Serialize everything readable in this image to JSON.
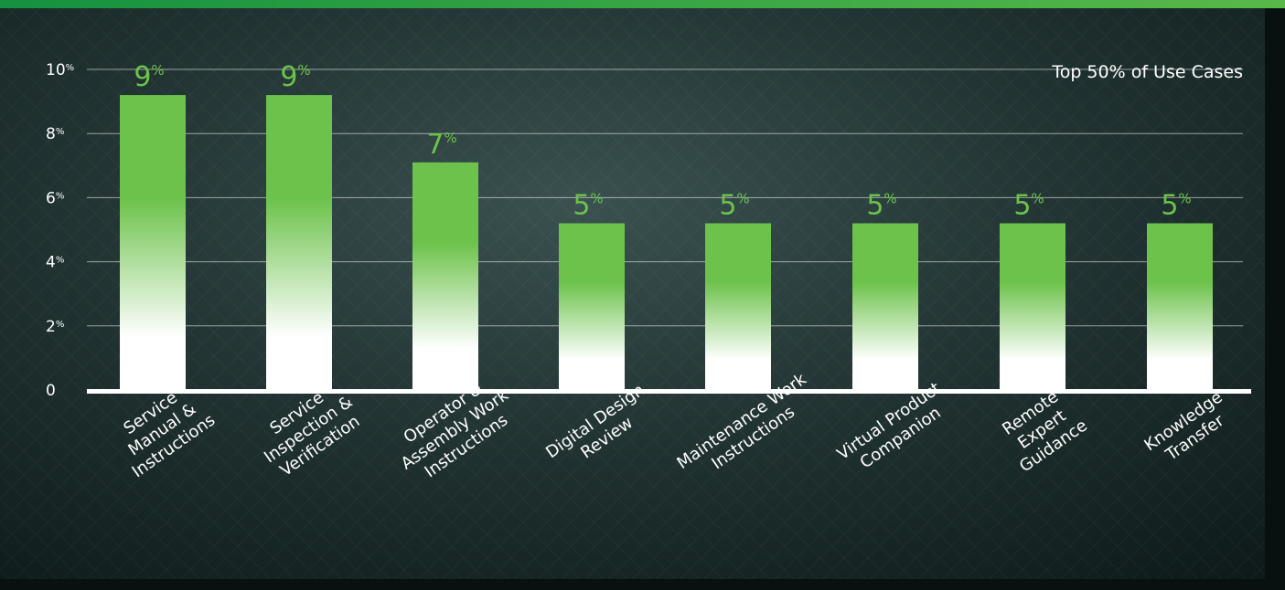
{
  "colors": {
    "bar_top": "#6cc24a",
    "bar_bottom": "#ffffff",
    "value_label": "#6cc24a",
    "top_banner": "#2aa84f",
    "background": "#1b2a2a"
  },
  "chart_data": {
    "type": "bar",
    "title": "Top 50% of Use Cases",
    "xlabel": "",
    "ylabel": "",
    "ylim": [
      0,
      10
    ],
    "grid": true,
    "yticks": [
      {
        "value": 0,
        "label": "0",
        "suffix": ""
      },
      {
        "value": 2,
        "label": "2",
        "suffix": "%"
      },
      {
        "value": 4,
        "label": "4",
        "suffix": "%"
      },
      {
        "value": 6,
        "label": "6",
        "suffix": "%"
      },
      {
        "value": 8,
        "label": "8",
        "suffix": "%"
      },
      {
        "value": 10,
        "label": "10",
        "suffix": "%"
      }
    ],
    "categories": [
      [
        "Service",
        "Manual &",
        "Instructions"
      ],
      [
        "Service",
        "Inspection &",
        "Verification"
      ],
      [
        "Operator &",
        "Assembly Work",
        "Instructions"
      ],
      [
        "Digital Design",
        "Review"
      ],
      [
        "Maintenance Work",
        "Instructions"
      ],
      [
        "Virtual Product",
        "Companion"
      ],
      [
        "Remote",
        "Expert",
        "Guidance"
      ],
      [
        "Knowledge",
        "Transfer"
      ]
    ],
    "values": [
      9.2,
      9.2,
      7.1,
      5.2,
      5.2,
      5.2,
      5.2,
      5.2
    ],
    "value_labels": [
      "9",
      "9",
      "7",
      "5",
      "5",
      "5",
      "5",
      "5"
    ],
    "value_suffix": "%"
  }
}
